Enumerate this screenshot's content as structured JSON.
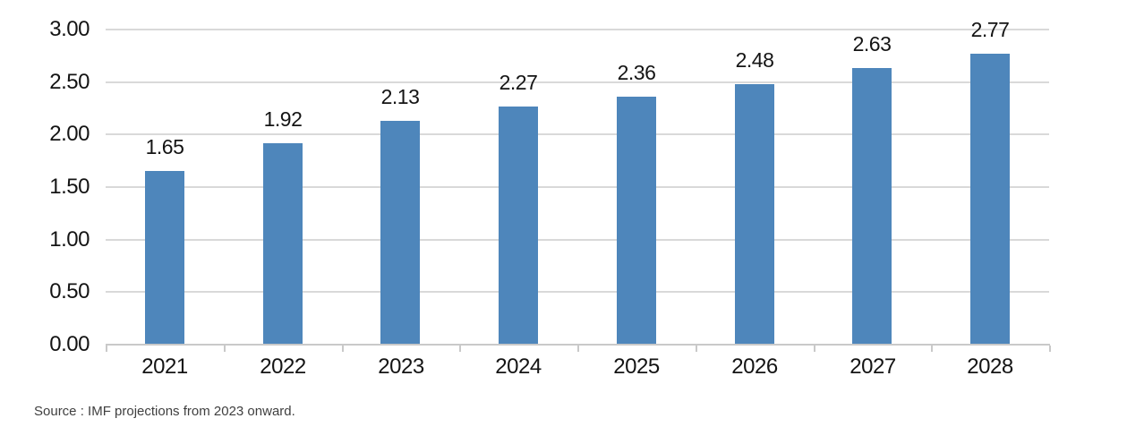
{
  "chart_data": {
    "type": "bar",
    "categories": [
      "2021",
      "2022",
      "2023",
      "2024",
      "2025",
      "2026",
      "2027",
      "2028"
    ],
    "values": [
      1.65,
      1.92,
      2.13,
      2.27,
      2.36,
      2.48,
      2.63,
      2.77
    ],
    "data_labels": [
      "1.65",
      "1.92",
      "2.13",
      "2.27",
      "2.36",
      "2.48",
      "2.63",
      "2.77"
    ],
    "title": "",
    "xlabel": "",
    "ylabel": "",
    "ylim": [
      0,
      3
    ],
    "ytick_interval": 0.5,
    "ytick_labels": [
      "0.00",
      "0.50",
      "1.00",
      "1.50",
      "2.00",
      "2.50",
      "3.00"
    ],
    "grid": true,
    "legend": false
  },
  "colors": {
    "bar": "#4e86bb",
    "gridline": "#d9d9d9",
    "axis": "#c9c9c9",
    "label_text": "#141414",
    "source_text": "#3f3f3f",
    "background": "#ffffff"
  },
  "source_note": "Source : IMF projections from 2023 onward."
}
